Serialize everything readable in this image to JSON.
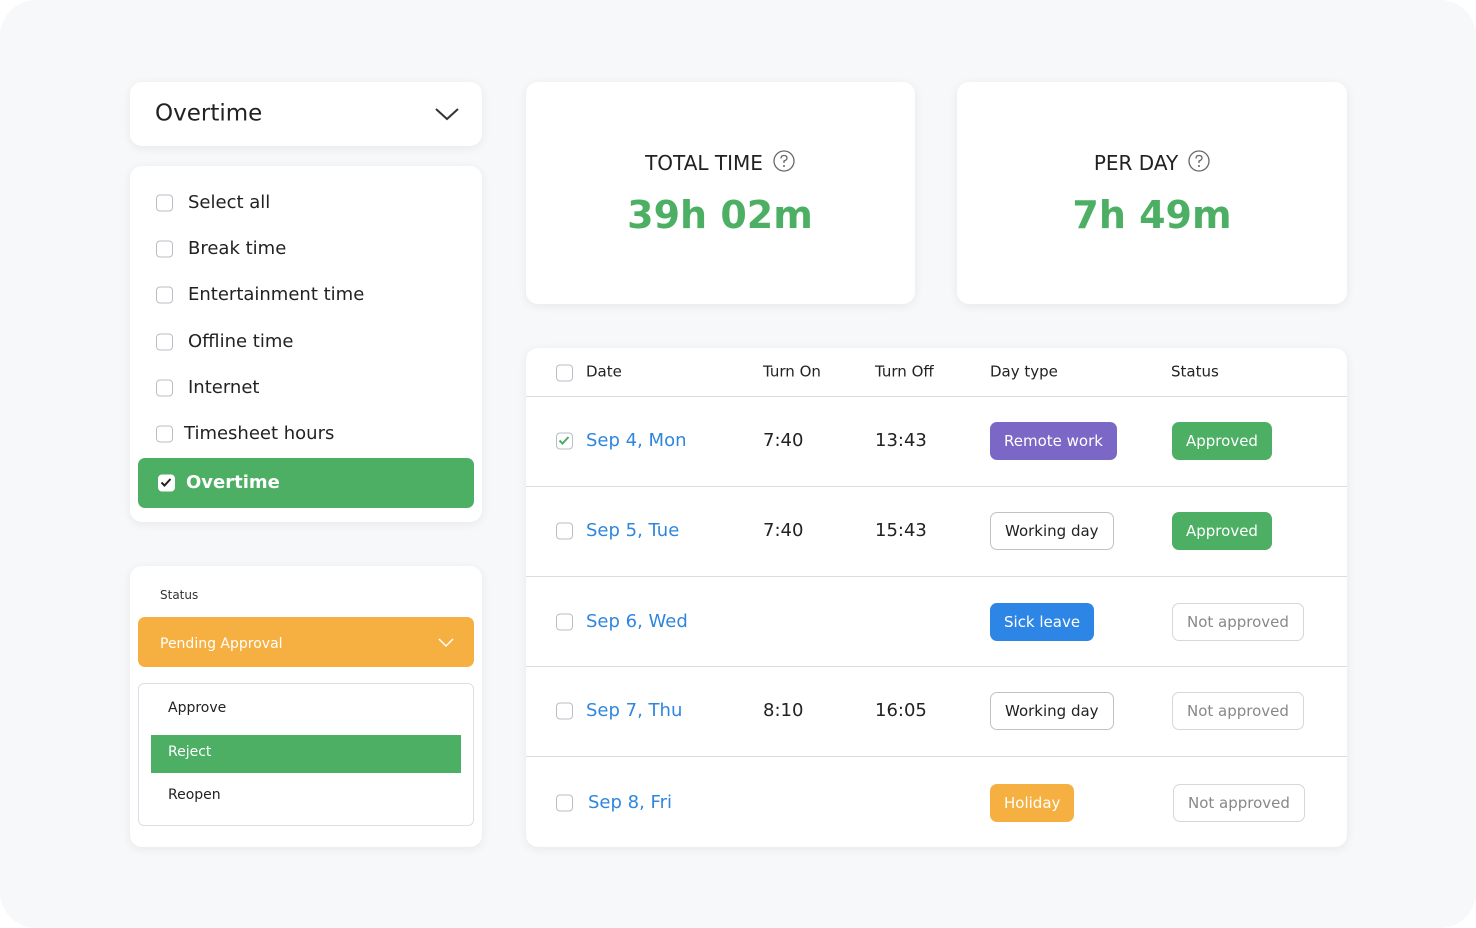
{
  "filter": {
    "selected": "Overtime",
    "options": [
      {
        "label": "Select all",
        "checked": false
      },
      {
        "label": "Break time",
        "checked": false
      },
      {
        "label": "Entertainment time",
        "checked": false
      },
      {
        "label": "Offline time",
        "checked": false
      },
      {
        "label": "Internet",
        "checked": false
      },
      {
        "label": "Timesheet hours",
        "checked": false
      },
      {
        "label": "Overtime",
        "checked": true
      }
    ]
  },
  "status_panel": {
    "label": "Status",
    "selected": "Pending Approval",
    "actions": [
      {
        "label": "Approve",
        "active": false
      },
      {
        "label": "Reject",
        "active": true
      },
      {
        "label": "Reopen",
        "active": false
      }
    ]
  },
  "totals": [
    {
      "label": "TOTAL TIME",
      "value": "39h 02m"
    },
    {
      "label": "PER DAY",
      "value": "7h 49m"
    }
  ],
  "table": {
    "columns": [
      "Date",
      "Turn On",
      "Turn Off",
      "Day type",
      "Status"
    ],
    "rows": [
      {
        "checked": true,
        "date": "Sep 4, Mon",
        "turn_on": "7:40",
        "turn_off": "13:43",
        "day_type": "Remote work",
        "day_type_color": "#7b68c6",
        "status": "Approved",
        "status_color": "#4caf63"
      },
      {
        "checked": false,
        "date": "Sep 5, Tue",
        "turn_on": "7:40",
        "turn_off": "15:43",
        "day_type": "Working day",
        "day_type_color": null,
        "status": "Approved",
        "status_color": "#4caf63"
      },
      {
        "checked": false,
        "date": "Sep 6, Wed",
        "turn_on": null,
        "turn_off": null,
        "day_type": "Sick leave",
        "day_type_color": "#2d86e6",
        "status": "Not approved",
        "status_color": null
      },
      {
        "checked": false,
        "date": "Sep 7, Thu",
        "turn_on": "8:10",
        "turn_off": "16:05",
        "day_type": "Working day",
        "day_type_color": null,
        "status": "Not approved",
        "status_color": null
      },
      {
        "checked": false,
        "date": "Sep 8, Fri",
        "turn_on": null,
        "turn_off": null,
        "day_type": "Holiday",
        "day_type_color": "#f6b042",
        "status": "Not approved",
        "status_color": null
      }
    ]
  }
}
